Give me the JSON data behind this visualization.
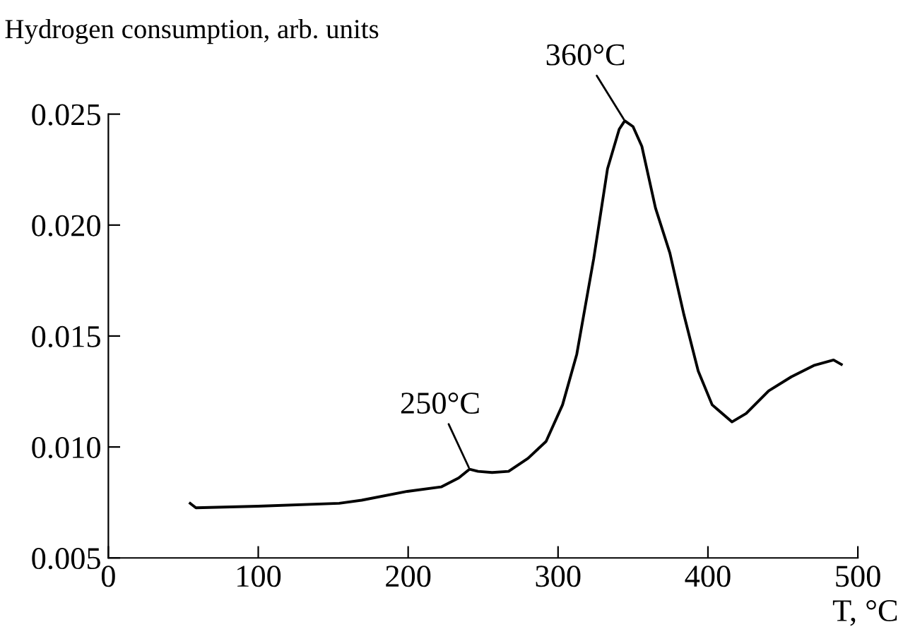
{
  "chart_data": {
    "type": "line",
    "ylabel": "Hydrogen consumption, arb. units",
    "xlabel": "T, °C",
    "series": [
      {
        "color": "#000000",
        "x": [
          54.6,
          58.4,
          99.8,
          154,
          169,
          199.5,
          222,
          233.7,
          241,
          246.6,
          256,
          267,
          280,
          292,
          303,
          312.5,
          323.8,
          333,
          340.8,
          344.5,
          350,
          355.9,
          365,
          374.6,
          384,
          393.5,
          402.8,
          416,
          425.5,
          440.5,
          455.6,
          470.6,
          483.8,
          489
        ],
        "values": [
          0.00746,
          0.00726,
          0.00733,
          0.00746,
          0.0076,
          0.008,
          0.0082,
          0.0086,
          0.009,
          0.0089,
          0.00885,
          0.0089,
          0.00949,
          0.01025,
          0.0119,
          0.01418,
          0.01849,
          0.02254,
          0.02432,
          0.0247,
          0.02444,
          0.02355,
          0.02077,
          0.01874,
          0.01595,
          0.01342,
          0.0119,
          0.01113,
          0.01151,
          0.01253,
          0.01316,
          0.01367,
          0.01392,
          0.01372
        ]
      }
    ],
    "annotations": [
      {
        "text": "360°C",
        "x": 344.5,
        "y": 0.0247
      },
      {
        "text": "250°C",
        "x": 241,
        "y": 0.009
      }
    ],
    "xlim": [
      0,
      500
    ],
    "xticks": [
      0,
      100,
      200,
      300,
      400,
      500
    ],
    "ylim": [
      0.005,
      0.025
    ],
    "yticks": [
      {
        "value": 0.005,
        "label": "0.005"
      },
      {
        "value": 0.01,
        "label": "0.010"
      },
      {
        "value": 0.015,
        "label": "0.015"
      },
      {
        "value": 0.02,
        "label": "0.020"
      },
      {
        "value": 0.025,
        "label": "0.025"
      }
    ],
    "grid": false,
    "legend": false,
    "marker": "none",
    "line_style": "solid"
  }
}
